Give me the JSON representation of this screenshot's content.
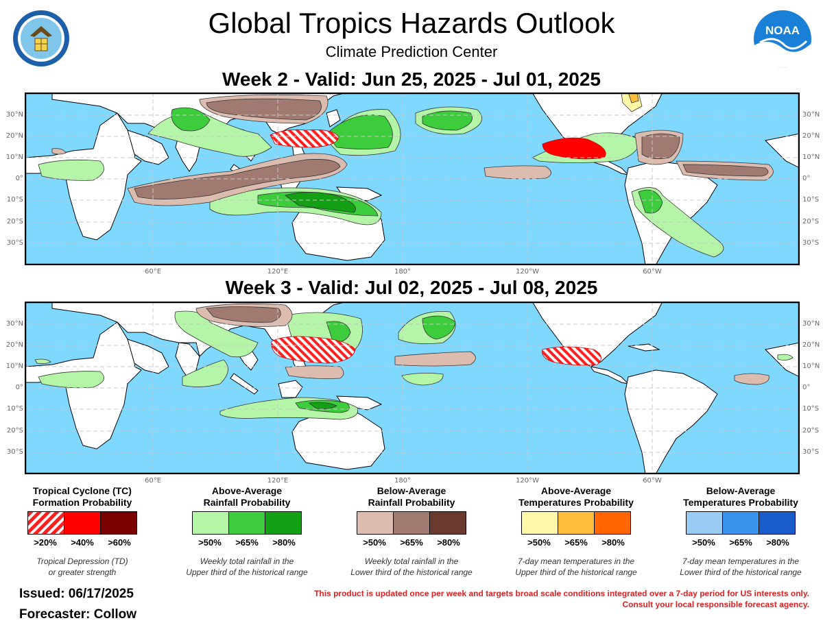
{
  "header": {
    "title": "Global Tropics Hazards Outlook",
    "subtitle": "Climate Prediction Center",
    "noaa_logo_text": "NOAA",
    "seal_text": "DEPARTMENT OF COMMERCE · UNITED STATES OF AMERICA"
  },
  "maps": [
    {
      "title": "Week 2 - Valid: Jun 25, 2025 - Jul 01, 2025"
    },
    {
      "title": "Week 3 - Valid: Jul 02, 2025 - Jul 08, 2025"
    }
  ],
  "axes": {
    "lat_labels": [
      "30°N",
      "20°N",
      "10°N",
      "0°",
      "10°S",
      "20°S",
      "30°S"
    ],
    "lon_labels": [
      "60°E",
      "120°E",
      "180°",
      "120°W",
      "60°W"
    ]
  },
  "colors": {
    "ocean": "#7fd8ff",
    "land": "#ffffff",
    "tc_20": "#ff2020",
    "tc_40": "#ff0000",
    "tc_60": "#7a0000",
    "rain_above_50": "#b5f5a8",
    "rain_above_65": "#3ccc3c",
    "rain_above_80": "#14a014",
    "rain_below_50": "#dcbcaf",
    "rain_below_65": "#a07a70",
    "rain_below_80": "#6b3a2e",
    "temp_above_50": "#fff8a8",
    "temp_above_65": "#ffbe3c",
    "temp_above_80": "#ff6600",
    "temp_below_50": "#99ccf2",
    "temp_below_65": "#3a94ee",
    "temp_below_80": "#1a5ccc"
  },
  "legend": [
    {
      "title_line1": "Tropical Cyclone (TC)",
      "title_line2": "Formation Probability",
      "labels": [
        ">20%",
        ">40%",
        ">60%"
      ],
      "desc_line1": "Tropical Depression (TD)",
      "desc_line2": "or greater strength"
    },
    {
      "title_line1": "Above-Average",
      "title_line2": "Rainfall Probability",
      "labels": [
        ">50%",
        ">65%",
        ">80%"
      ],
      "desc_line1": "Weekly total rainfall in the",
      "desc_line2": "Upper third of the historical range"
    },
    {
      "title_line1": "Below-Average",
      "title_line2": "Rainfall Probability",
      "labels": [
        ">50%",
        ">65%",
        ">80%"
      ],
      "desc_line1": "Weekly total rainfall in the",
      "desc_line2": "Lower third of the historical range"
    },
    {
      "title_line1": "Above-Average",
      "title_line2": "Temperatures Probability",
      "labels": [
        ">50%",
        ">65%",
        ">80%"
      ],
      "desc_line1": "7-day mean temperatures in the",
      "desc_line2": "Upper third of the historical range"
    },
    {
      "title_line1": "Below-Average",
      "title_line2": "Temperatures Probability",
      "labels": [
        ">50%",
        ">65%",
        ">80%"
      ],
      "desc_line1": "7-day mean temperatures in the",
      "desc_line2": "Lower third of the historical range"
    }
  ],
  "footer": {
    "issued": "Issued: 06/17/2025",
    "forecaster": "Forecaster: Collow",
    "disclaimer_line1": "This product is updated once per week and targets broad scale conditions integrated over a 7-day period for US interests only.",
    "disclaimer_line2": "Consult your local responsible forecast agency."
  }
}
